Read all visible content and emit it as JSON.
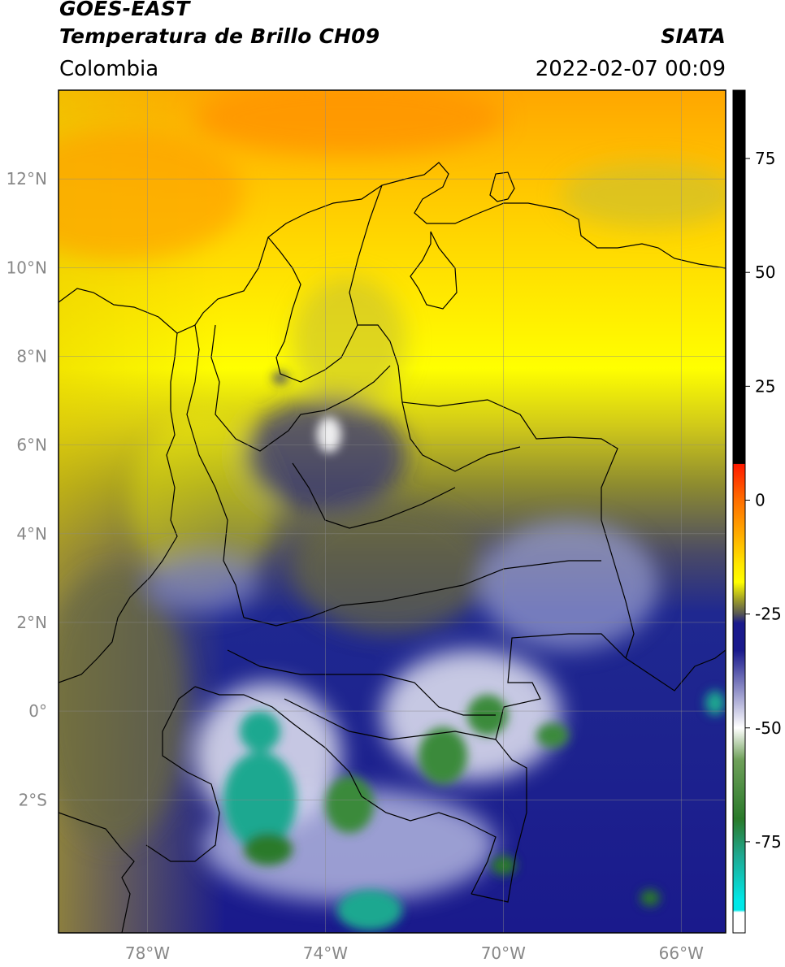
{
  "header": {
    "satellite": "GOES-EAST",
    "product": "Temperatura de Brillo CH09",
    "agency": "SIATA",
    "region": "Colombia",
    "timestamp": "2022-02-07 00:09"
  },
  "map": {
    "lon_range": [
      -80,
      -65
    ],
    "lat_range": [
      -5,
      14
    ],
    "lat_ticks": [
      {
        "value": 12,
        "label": "12°N"
      },
      {
        "value": 10,
        "label": "10°N"
      },
      {
        "value": 8,
        "label": "8°N"
      },
      {
        "value": 6,
        "label": "6°N"
      },
      {
        "value": 4,
        "label": "4°N"
      },
      {
        "value": 2,
        "label": "2°N"
      },
      {
        "value": 0,
        "label": "0°"
      },
      {
        "value": -2,
        "label": "2°S"
      }
    ],
    "lon_ticks": [
      {
        "value": -78,
        "label": "78°W"
      },
      {
        "value": -74,
        "label": "74°W"
      },
      {
        "value": -70,
        "label": "70°W"
      },
      {
        "value": -66,
        "label": "66°W"
      }
    ],
    "grid": true
  },
  "colorbar": {
    "range": [
      -95,
      90
    ],
    "ticks": [
      {
        "value": 75,
        "label": "75"
      },
      {
        "value": 50,
        "label": "50"
      },
      {
        "value": 25,
        "label": "25"
      },
      {
        "value": 0,
        "label": "0"
      },
      {
        "value": -25,
        "label": "-25"
      },
      {
        "value": -50,
        "label": "-50"
      },
      {
        "value": -75,
        "label": "-75"
      }
    ],
    "stops": [
      {
        "value": 90,
        "color": "#000000"
      },
      {
        "value": 8,
        "color": "#000000"
      },
      {
        "value": 7.9,
        "color": "#ff1a00"
      },
      {
        "value": 0,
        "color": "#ff6e00"
      },
      {
        "value": -8,
        "color": "#ffb000"
      },
      {
        "value": -14,
        "color": "#ffe600"
      },
      {
        "value": -18,
        "color": "#ffff00"
      },
      {
        "value": -22,
        "color": "#9a9a2a"
      },
      {
        "value": -25,
        "color": "#555555"
      },
      {
        "value": -27,
        "color": "#1a1a8c"
      },
      {
        "value": -33,
        "color": "#1a1a8c"
      },
      {
        "value": -50,
        "color": "#ffffff"
      },
      {
        "value": -57,
        "color": "#6fa05a"
      },
      {
        "value": -70,
        "color": "#2a7a2a"
      },
      {
        "value": -78,
        "color": "#1fa890"
      },
      {
        "value": -88,
        "color": "#00e8e8"
      },
      {
        "value": -90,
        "color": "#00e8e8"
      },
      {
        "value": -90.5,
        "color": "#ffffff"
      },
      {
        "value": -95,
        "color": "#ffffff"
      }
    ]
  }
}
